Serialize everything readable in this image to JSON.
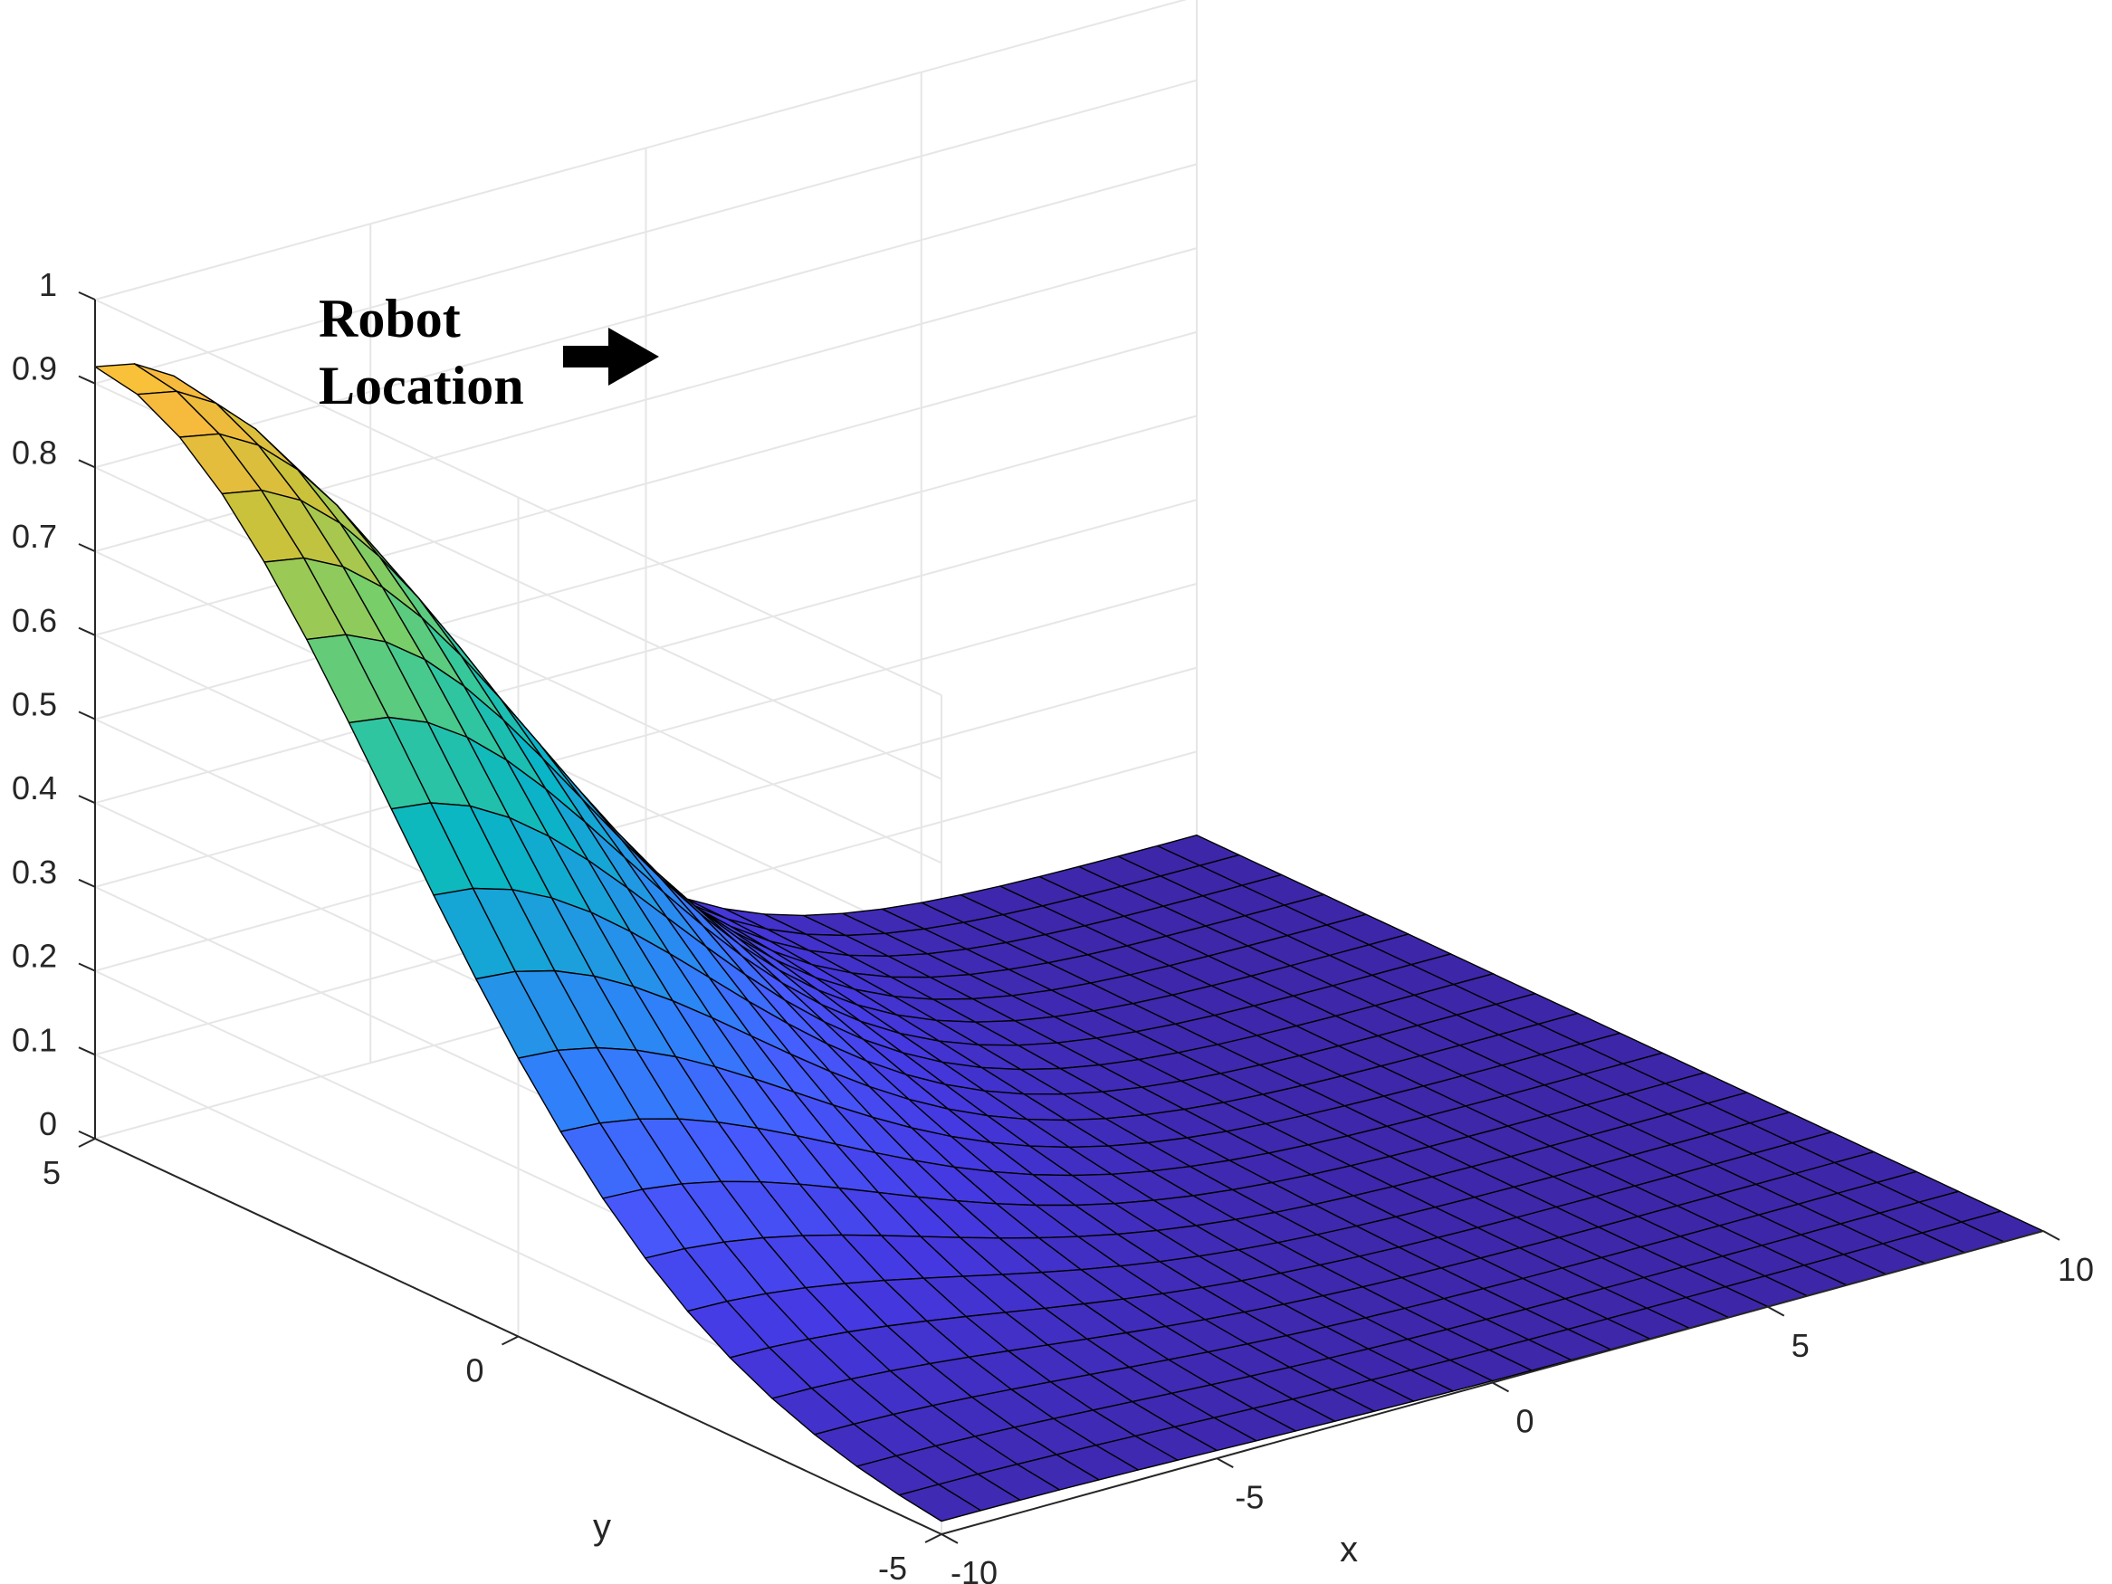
{
  "chart_data": {
    "type": "surface",
    "xlabel": "x",
    "ylabel": "y",
    "zlabel": "",
    "xlim": [
      -10,
      10
    ],
    "ylim": [
      -5,
      5
    ],
    "zlim": [
      0,
      1
    ],
    "xticks": [
      "-10",
      "-5",
      "0",
      "5",
      "10"
    ],
    "yticks": [
      "-5",
      "0",
      "5"
    ],
    "zticks": [
      "0",
      "0.1",
      "0.2",
      "0.3",
      "0.4",
      "0.5",
      "0.6",
      "0.7",
      "0.8",
      "0.9",
      "1"
    ],
    "grid": true,
    "colormap": "parula",
    "peak": {
      "x": -10,
      "y": 5,
      "z": 0.92
    },
    "spread": {
      "sx": 5.0,
      "sy": 3.5
    },
    "mesh": {
      "nx": 29,
      "ny": 21
    },
    "annotation": {
      "line1": "Robot",
      "line2": "Location"
    }
  }
}
